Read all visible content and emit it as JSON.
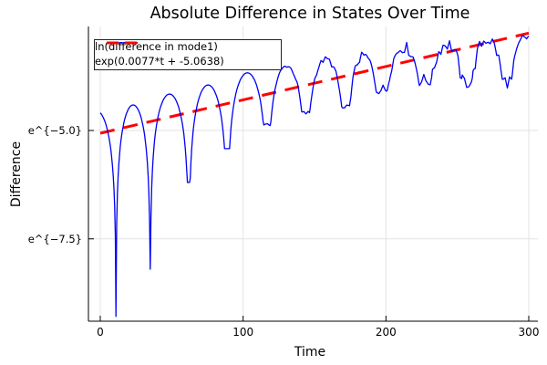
{
  "title": "Absolute Difference in States Over Time",
  "chart_data": {
    "type": "line",
    "title": "Absolute Difference in States Over Time",
    "xlabel": "Time",
    "ylabel": "Difference",
    "x_ticks": [
      0,
      100,
      200,
      300
    ],
    "y_ticks": [
      {
        "label": "e^{−5.0}",
        "ln_value": -5.0
      },
      {
        "label": "e^{−7.5}",
        "ln_value": -7.5
      }
    ],
    "xlim": [
      -8,
      306
    ],
    "ylim_ln": [
      -9.4,
      -2.6
    ],
    "grid": true,
    "legend_position": "top-left",
    "series": [
      {
        "name": "ln(difference in mode1)",
        "color": "#0000f5",
        "style": "solid",
        "description": "log-scale absolute difference between two trajectories; scalloped arcs with sharp cusps at sign changes, growing noise after t≈112, trending upward",
        "t_start": 0,
        "t_end": 300,
        "start_ln": -4.59,
        "cusp_times": [
          11,
          35,
          62,
          89,
          117,
          144,
          172,
          197,
          228,
          257,
          285
        ],
        "cusp_depths_ln": [
          -9.29,
          -8.2,
          -6.2,
          -5.42,
          -4.87,
          -4.6,
          -4.5,
          -4.05,
          -3.84,
          -3.88,
          -3.86
        ],
        "arc_peaks_ln": [
          -4.55,
          -4.41,
          -4.16,
          -3.95,
          -3.67,
          -3.51,
          -3.36,
          -3.28,
          -3.08,
          -3.0,
          -2.89,
          -2.85
        ],
        "virtual_bounds": [
          -16,
          312
        ],
        "noise_start_t": 112,
        "noise_ramp_per_t": 0.0012,
        "noise_max": 0.17
      },
      {
        "name": "exp(0.0077*t + -5.0638)",
        "color": "#ff0000",
        "style": "dashed",
        "slope": 0.0077,
        "intercept": -5.0638,
        "t_range": [
          0,
          300
        ]
      }
    ]
  },
  "legend": {
    "entries": [
      {
        "label": "ln(difference in mode1)"
      },
      {
        "label": "exp(0.0077*t + -5.0638)"
      }
    ]
  },
  "colors": {
    "blue_line": "#0000f5",
    "red_line": "#ff0000",
    "grid": "#e3e3e3",
    "axis": "#000000",
    "background": "#ffffff"
  }
}
